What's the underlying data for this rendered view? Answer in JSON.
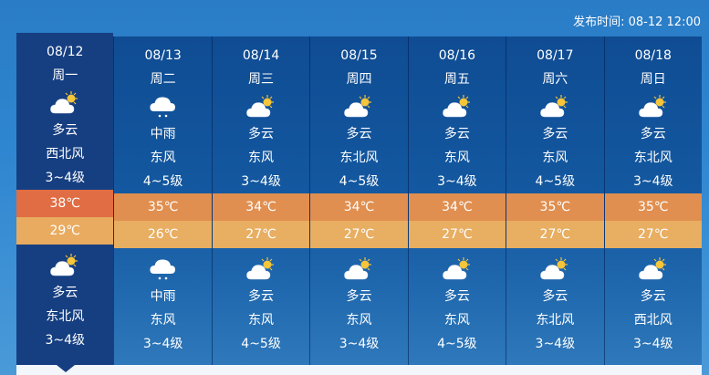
{
  "publish": {
    "label": "发布时间:",
    "time": "08-12 12:00"
  },
  "days": [
    {
      "date": "08/12",
      "weekday": "周一",
      "day_icon": "partly-cloudy",
      "day_weather": "多云",
      "day_wind": "西北风",
      "day_level": "3~4级",
      "high": "38℃",
      "low": "29℃",
      "night_icon": "partly-cloudy",
      "night_weather": "多云",
      "night_wind": "东北风",
      "night_level": "3~4级",
      "selected": true
    },
    {
      "date": "08/13",
      "weekday": "周二",
      "day_icon": "rain",
      "day_weather": "中雨",
      "day_wind": "东风",
      "day_level": "4~5级",
      "high": "35℃",
      "low": "26℃",
      "night_icon": "rain",
      "night_weather": "中雨",
      "night_wind": "东风",
      "night_level": "3~4级"
    },
    {
      "date": "08/14",
      "weekday": "周三",
      "day_icon": "partly-cloudy",
      "day_weather": "多云",
      "day_wind": "东风",
      "day_level": "3~4级",
      "high": "34℃",
      "low": "27℃",
      "night_icon": "partly-cloudy",
      "night_weather": "多云",
      "night_wind": "东风",
      "night_level": "4~5级"
    },
    {
      "date": "08/15",
      "weekday": "周四",
      "day_icon": "partly-cloudy",
      "day_weather": "多云",
      "day_wind": "东北风",
      "day_level": "4~5级",
      "high": "34℃",
      "low": "27℃",
      "night_icon": "partly-cloudy",
      "night_weather": "多云",
      "night_wind": "东风",
      "night_level": "3~4级"
    },
    {
      "date": "08/16",
      "weekday": "周五",
      "day_icon": "partly-cloudy",
      "day_weather": "多云",
      "day_wind": "东风",
      "day_level": "3~4级",
      "high": "34℃",
      "low": "27℃",
      "night_icon": "partly-cloudy",
      "night_weather": "多云",
      "night_wind": "东风",
      "night_level": "4~5级"
    },
    {
      "date": "08/17",
      "weekday": "周六",
      "day_icon": "partly-cloudy",
      "day_weather": "多云",
      "day_wind": "东风",
      "day_level": "4~5级",
      "high": "35℃",
      "low": "27℃",
      "night_icon": "partly-cloudy",
      "night_weather": "多云",
      "night_wind": "东北风",
      "night_level": "3~4级"
    },
    {
      "date": "08/18",
      "weekday": "周日",
      "day_icon": "partly-cloudy",
      "day_weather": "多云",
      "day_wind": "东北风",
      "day_level": "3~4级",
      "high": "35℃",
      "low": "27℃",
      "night_icon": "partly-cloudy",
      "night_weather": "多云",
      "night_wind": "西北风",
      "night_level": "3~4级"
    }
  ],
  "colors": {
    "high": "#e08f50",
    "low": "#e8ae62",
    "high_selected": "#e06d43",
    "panel": "#0f4c93",
    "selected": "#163f82"
  }
}
